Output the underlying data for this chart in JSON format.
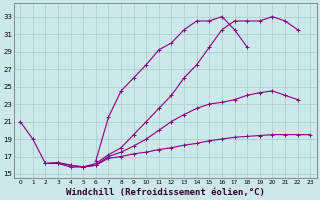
{
  "background_color": "#cce8e8",
  "grid_color": "#aacccc",
  "line_color": "#880088",
  "marker": "+",
  "markersize": 3,
  "linewidth": 0.8,
  "xlabel": "Windchill (Refroidissement éolien,°C)",
  "xlabel_fontsize": 6.5,
  "ylabel_values": [
    15,
    17,
    19,
    21,
    23,
    25,
    27,
    29,
    31,
    33
  ],
  "xlim": [
    -0.5,
    23.5
  ],
  "ylim": [
    14.5,
    34.5
  ],
  "xtick_labels": [
    "0",
    "1",
    "2",
    "3",
    "4",
    "5",
    "6",
    "7",
    "8",
    "9",
    "10",
    "11",
    "12",
    "13",
    "14",
    "15",
    "16",
    "17",
    "18",
    "19",
    "20",
    "21",
    "22",
    "23"
  ],
  "curve1": {
    "x": [
      0,
      1,
      2,
      3,
      4,
      5,
      6,
      7,
      8,
      9,
      10,
      11,
      12,
      13,
      14,
      15,
      16,
      17,
      18,
      19,
      20,
      21,
      22
    ],
    "y": [
      21,
      19,
      16.2,
      16.2,
      15.8,
      15.8,
      16.2,
      17.2,
      18.0,
      19.5,
      21.0,
      22.5,
      24.0,
      26.0,
      27.5,
      29.5,
      31.5,
      32.5,
      32.5,
      32.5,
      33.0,
      32.5,
      31.5
    ]
  },
  "curve2": {
    "x": [
      6,
      7,
      8,
      9,
      10,
      11,
      12,
      13,
      14,
      15,
      16,
      17,
      18
    ],
    "y": [
      16.5,
      21.5,
      24.5,
      26.0,
      27.5,
      29.2,
      30.0,
      31.5,
      32.5,
      32.5,
      33.0,
      31.5,
      29.5
    ]
  },
  "curve3": {
    "x": [
      2,
      3,
      4,
      5,
      6,
      7,
      8,
      9,
      10,
      11,
      12,
      13,
      14,
      15,
      16,
      17,
      18,
      19,
      20,
      21,
      22
    ],
    "y": [
      16.2,
      16.3,
      16.0,
      15.8,
      16.0,
      17.0,
      17.5,
      18.2,
      19.0,
      20.0,
      21.0,
      21.8,
      22.5,
      23.0,
      23.2,
      23.5,
      24.0,
      24.3,
      24.5,
      24.0,
      23.5
    ]
  },
  "curve4": {
    "x": [
      2,
      3,
      4,
      5,
      6,
      7,
      8,
      9,
      10,
      11,
      12,
      13,
      14,
      15,
      16,
      17,
      18,
      19,
      20,
      21,
      22,
      23
    ],
    "y": [
      16.2,
      16.3,
      16.0,
      15.8,
      16.0,
      16.8,
      17.0,
      17.3,
      17.5,
      17.8,
      18.0,
      18.3,
      18.5,
      18.8,
      19.0,
      19.2,
      19.3,
      19.4,
      19.5,
      19.5,
      19.5,
      19.5
    ]
  }
}
